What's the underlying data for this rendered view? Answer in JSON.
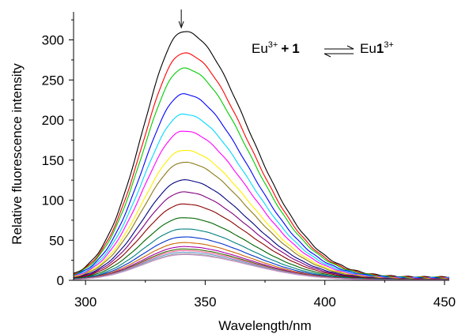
{
  "chart_data": {
    "type": "line",
    "xlabel": "Wavelength/nm",
    "ylabel": "Relative fluorescence intensity",
    "xlim": [
      295,
      452
    ],
    "ylim": [
      0,
      335
    ],
    "x_ticks": [
      300,
      350,
      400,
      450
    ],
    "y_ticks": [
      0,
      50,
      100,
      150,
      200,
      250,
      300
    ],
    "grid": false,
    "legend": "none",
    "annotation": {
      "reactant": "Eu",
      "reactant_charge": "3+",
      "plus": "+",
      "ligand": "1",
      "product": "Eu",
      "product_ligand": "1",
      "product_charge": "3+"
    },
    "arrow_at_x": 340,
    "peak_x": 341,
    "series": [
      {
        "color": "#000000",
        "peak": 310
      },
      {
        "color": "#ff0000",
        "peak": 283
      },
      {
        "color": "#00cc00",
        "peak": 264
      },
      {
        "color": "#0000ff",
        "peak": 232
      },
      {
        "color": "#00d8ff",
        "peak": 207
      },
      {
        "color": "#ff00ff",
        "peak": 186
      },
      {
        "color": "#ffee00",
        "peak": 162
      },
      {
        "color": "#8b7a1a",
        "peak": 147
      },
      {
        "color": "#000080",
        "peak": 125
      },
      {
        "color": "#800080",
        "peak": 110
      },
      {
        "color": "#8b0000",
        "peak": 95
      },
      {
        "color": "#006400",
        "peak": 78
      },
      {
        "color": "#008080",
        "peak": 64
      },
      {
        "color": "#0033cc",
        "peak": 54
      },
      {
        "color": "#cc6600",
        "peak": 47
      },
      {
        "color": "#aa00aa",
        "peak": 42
      },
      {
        "color": "#336600",
        "peak": 39
      },
      {
        "color": "#ff6699",
        "peak": 37
      },
      {
        "color": "#6699cc",
        "peak": 35
      },
      {
        "color": "#999999",
        "peak": 33
      },
      {
        "color": "#cc99cc",
        "peak": 32
      }
    ]
  }
}
